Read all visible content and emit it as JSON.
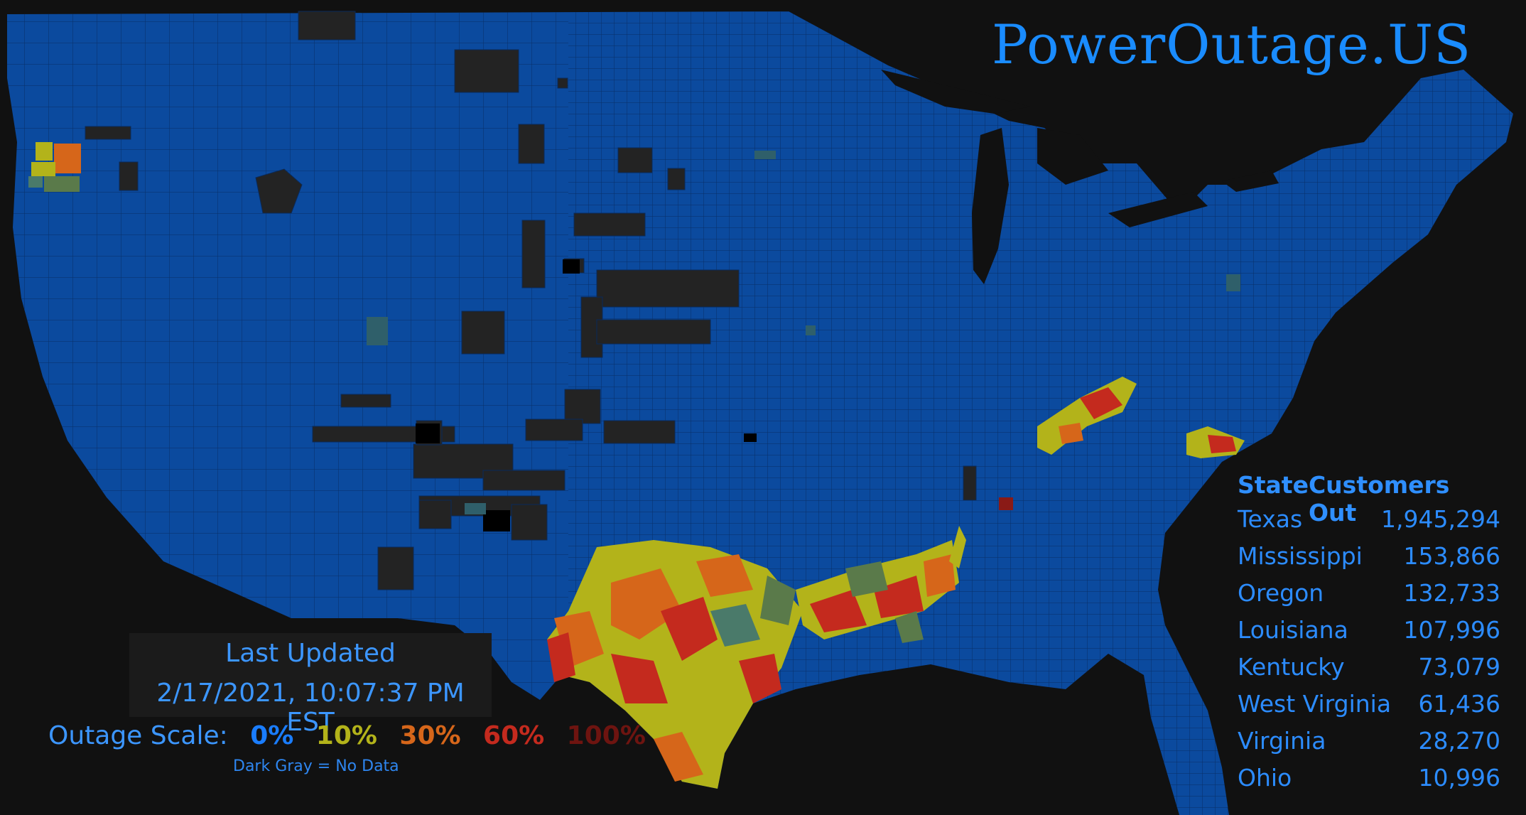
{
  "site": {
    "title": "PowerOutage.US"
  },
  "update": {
    "label": "Last Updated",
    "timestamp": "2/17/2021, 10:07:37 PM EST"
  },
  "scale": {
    "label": "Outage Scale:",
    "stops": [
      {
        "label": "0%",
        "color": "#1a7dff"
      },
      {
        "label": "10%",
        "color": "#b3b31a"
      },
      {
        "label": "30%",
        "color": "#d6661a"
      },
      {
        "label": "60%",
        "color": "#c42a1e"
      },
      {
        "label": "100%",
        "color": "#6e1410"
      }
    ],
    "no_data_note": "Dark Gray = No Data"
  },
  "table": {
    "headers": [
      "State",
      "Customers Out"
    ],
    "rows": [
      {
        "state": "Texas",
        "customers": "1,945,294"
      },
      {
        "state": "Mississippi",
        "customers": "153,866"
      },
      {
        "state": "Oregon",
        "customers": "132,733"
      },
      {
        "state": "Louisiana",
        "customers": "107,996"
      },
      {
        "state": "Kentucky",
        "customers": "73,079"
      },
      {
        "state": "West Virginia",
        "customers": "61,436"
      },
      {
        "state": "Virginia",
        "customers": "28,270"
      },
      {
        "state": "Ohio",
        "customers": "10,996"
      }
    ]
  },
  "colors": {
    "background": "#111111",
    "land": "#0b4a9e",
    "no_data": "#222222",
    "accent": "#1a8cff"
  }
}
